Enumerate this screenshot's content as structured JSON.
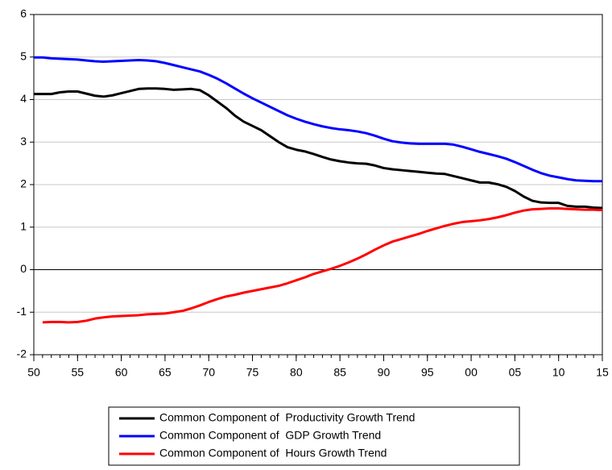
{
  "chart_data": {
    "type": "line",
    "x": [
      1950,
      1951,
      1952,
      1953,
      1954,
      1955,
      1956,
      1957,
      1958,
      1959,
      1960,
      1961,
      1962,
      1963,
      1964,
      1965,
      1966,
      1967,
      1968,
      1969,
      1970,
      1971,
      1972,
      1973,
      1974,
      1975,
      1976,
      1977,
      1978,
      1979,
      1980,
      1981,
      1982,
      1983,
      1984,
      1985,
      1986,
      1987,
      1988,
      1989,
      1990,
      1991,
      1992,
      1993,
      1994,
      1995,
      1996,
      1997,
      1998,
      1999,
      2000,
      2001,
      2002,
      2003,
      2004,
      2005,
      2006,
      2007,
      2008,
      2009,
      2010,
      2011,
      2012,
      2013,
      2014,
      2015
    ],
    "series": [
      {
        "name": "Common Component of  Productivity Growth Trend",
        "color": "#000000",
        "values": [
          4.13,
          4.13,
          4.13,
          4.17,
          4.19,
          4.19,
          4.14,
          4.09,
          4.07,
          4.1,
          4.15,
          4.2,
          4.25,
          4.26,
          4.26,
          4.25,
          4.23,
          4.24,
          4.25,
          4.22,
          4.1,
          3.95,
          3.8,
          3.62,
          3.48,
          3.38,
          3.28,
          3.14,
          3.0,
          2.88,
          2.82,
          2.78,
          2.72,
          2.65,
          2.59,
          2.55,
          2.52,
          2.5,
          2.49,
          2.45,
          2.39,
          2.36,
          2.34,
          2.32,
          2.3,
          2.28,
          2.26,
          2.25,
          2.2,
          2.15,
          2.1,
          2.05,
          2.05,
          2.01,
          1.95,
          1.85,
          1.72,
          1.62,
          1.58,
          1.57,
          1.57,
          1.5,
          1.48,
          1.48,
          1.46,
          1.45
        ]
      },
      {
        "name": "Common Component of  GDP Growth Trend",
        "color": "#0000ff",
        "values": [
          4.99,
          4.99,
          4.97,
          4.96,
          4.95,
          4.94,
          4.92,
          4.9,
          4.89,
          4.9,
          4.91,
          4.92,
          4.93,
          4.92,
          4.9,
          4.86,
          4.81,
          4.76,
          4.71,
          4.66,
          4.58,
          4.49,
          4.38,
          4.26,
          4.14,
          4.03,
          3.93,
          3.83,
          3.73,
          3.63,
          3.55,
          3.48,
          3.42,
          3.37,
          3.33,
          3.3,
          3.28,
          3.25,
          3.21,
          3.15,
          3.08,
          3.02,
          2.99,
          2.97,
          2.96,
          2.96,
          2.96,
          2.96,
          2.94,
          2.89,
          2.83,
          2.77,
          2.72,
          2.67,
          2.61,
          2.53,
          2.44,
          2.35,
          2.27,
          2.21,
          2.17,
          2.13,
          2.1,
          2.09,
          2.08,
          2.08
        ]
      },
      {
        "name": "Common Component of  Hours Growth Trend",
        "color": "#ff0000",
        "values": [
          null,
          -1.24,
          -1.23,
          -1.23,
          -1.24,
          -1.23,
          -1.2,
          -1.15,
          -1.12,
          -1.1,
          -1.09,
          -1.08,
          -1.07,
          -1.05,
          -1.04,
          -1.03,
          -1.0,
          -0.97,
          -0.91,
          -0.84,
          -0.76,
          -0.69,
          -0.63,
          -0.59,
          -0.54,
          -0.5,
          -0.46,
          -0.42,
          -0.38,
          -0.32,
          -0.25,
          -0.18,
          -0.1,
          -0.04,
          0.02,
          0.09,
          0.17,
          0.26,
          0.36,
          0.47,
          0.57,
          0.66,
          0.72,
          0.78,
          0.84,
          0.91,
          0.97,
          1.03,
          1.08,
          1.12,
          1.14,
          1.16,
          1.19,
          1.23,
          1.28,
          1.34,
          1.39,
          1.42,
          1.43,
          1.44,
          1.44,
          1.43,
          1.42,
          1.41,
          1.41,
          1.4
        ]
      }
    ],
    "xlim": [
      1950,
      2015
    ],
    "xticks": [
      {
        "value": 1950,
        "label": "50"
      },
      {
        "value": 1955,
        "label": "55"
      },
      {
        "value": 1960,
        "label": "60"
      },
      {
        "value": 1965,
        "label": "65"
      },
      {
        "value": 1970,
        "label": "70"
      },
      {
        "value": 1975,
        "label": "75"
      },
      {
        "value": 1980,
        "label": "80"
      },
      {
        "value": 1985,
        "label": "85"
      },
      {
        "value": 1990,
        "label": "90"
      },
      {
        "value": 1995,
        "label": "95"
      },
      {
        "value": 2000,
        "label": "00"
      },
      {
        "value": 2005,
        "label": "05"
      },
      {
        "value": 2010,
        "label": "10"
      },
      {
        "value": 2015,
        "label": "15"
      }
    ],
    "ylim": [
      -2,
      6
    ],
    "yticks": [
      -2,
      -1,
      0,
      1,
      2,
      3,
      4,
      5,
      6
    ],
    "grid": true,
    "legend": "bottom"
  }
}
